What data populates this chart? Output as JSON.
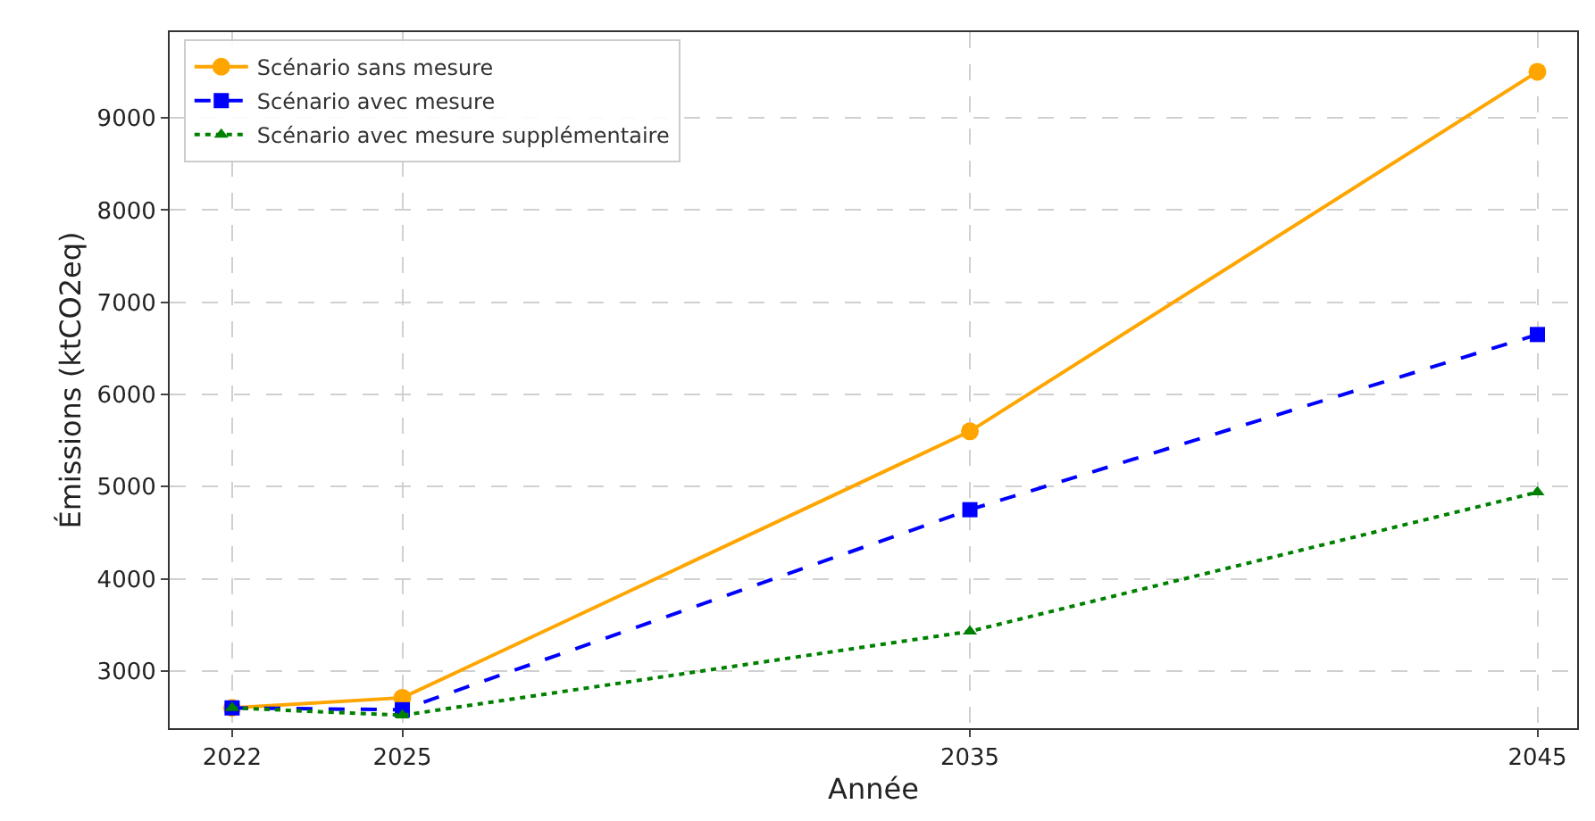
{
  "chart_data": {
    "type": "line",
    "xlabel": "Année",
    "ylabel": "Émissions (ktCO2eq)",
    "x": [
      2022,
      2025,
      2035,
      2045
    ],
    "series": [
      {
        "name": "Scénario sans mesure",
        "color": "#ffa500",
        "values": [
          2600,
          2710,
          5600,
          9500
        ],
        "marker": "circle",
        "line_style": "solid"
      },
      {
        "name": "Scénario avec mesure",
        "color": "#0000ff",
        "values": [
          2600,
          2580,
          4750,
          6650
        ],
        "marker": "square",
        "line_style": "dashed"
      },
      {
        "name": "Scénario avec mesure supplémentaire",
        "color": "#008000",
        "values": [
          2600,
          2520,
          3430,
          4940
        ],
        "marker": "triangle",
        "line_style": "dotted"
      }
    ],
    "xlim": [
      2020.9,
      2045.7
    ],
    "xticks": [
      2022,
      2025,
      2035,
      2045
    ],
    "ylim": [
      2380,
      9930
    ],
    "yticks": [
      3000,
      4000,
      5000,
      6000,
      7000,
      8000,
      9000
    ],
    "grid": true,
    "legend": "top left"
  }
}
